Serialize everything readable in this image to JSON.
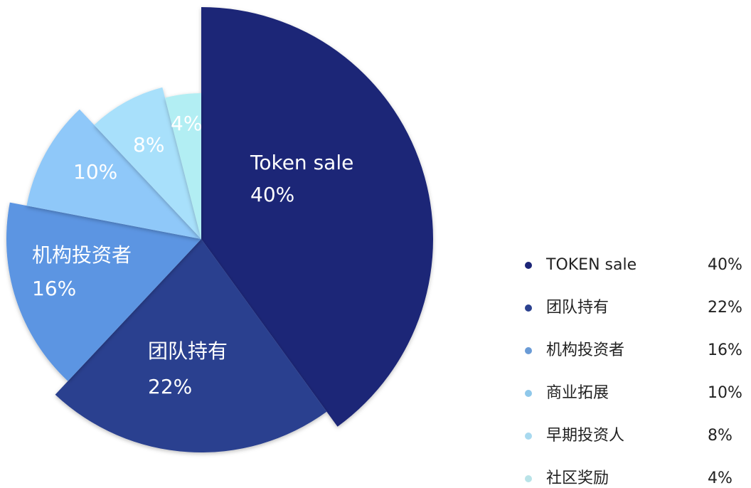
{
  "chart_data": {
    "type": "pie",
    "categories": [
      "TOKEN sale",
      "团队持有",
      "机构投资者",
      "商业拓展",
      "早期投资人",
      "社区奖励"
    ],
    "slice_labels": [
      "Token sale",
      "团队持有",
      "机构投资者",
      null,
      null,
      null
    ],
    "values": [
      40,
      22,
      16,
      10,
      8,
      4
    ],
    "value_labels": [
      "40%",
      "22%",
      "16%",
      "10%",
      "8%",
      "4%"
    ],
    "colors": [
      "#1c2577",
      "#2b418f",
      "#5c95e2",
      "#8fc8f9",
      "#a8e0fb",
      "#b2eef3"
    ],
    "legend_colors": [
      "#1c2577",
      "#2b418f",
      "#6a9bd6",
      "#8fc8ea",
      "#a8d9ef",
      "#b9e3e8"
    ],
    "legend": "right"
  }
}
